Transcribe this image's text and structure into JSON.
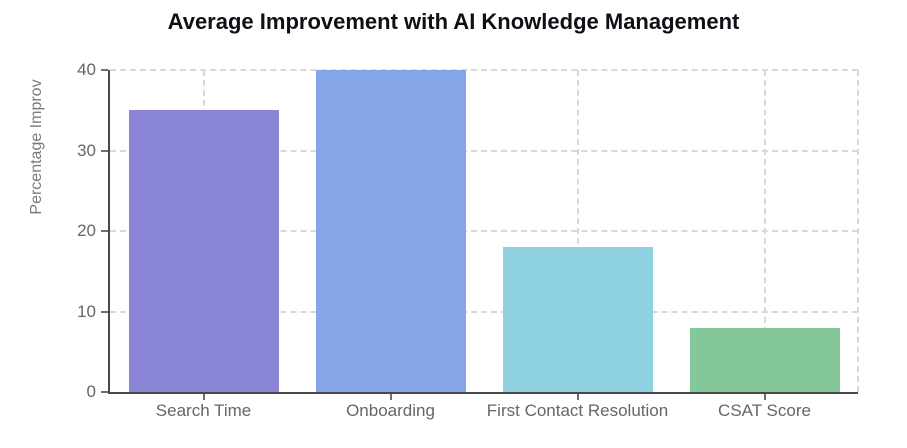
{
  "chart_data": {
    "type": "bar",
    "title": "Average Improvement with AI Knowledge Management",
    "ylabel": "Percentage Improv",
    "xlabel": "",
    "categories": [
      "Search Time",
      "Onboarding",
      "First Contact Resolution",
      "CSAT Score"
    ],
    "values": [
      35,
      40,
      18,
      8
    ],
    "bar_colors": [
      "#8a84d7",
      "#85a5e8",
      "#8ed1e1",
      "#84c89a"
    ],
    "yticks": [
      0,
      10,
      20,
      30,
      40
    ],
    "ylim": [
      0,
      40
    ],
    "legend": "none",
    "grid": {
      "horizontal": "dashed",
      "vertical": "dashed-at-category-centers-and-right-edge",
      "color": "#d8d8d8"
    },
    "colors": {
      "axis": "#4a4a4a",
      "tick_label": "#666666",
      "title": "#0d1014",
      "y_axis_title": "#7b7b7b",
      "background": "#ffffff"
    }
  }
}
